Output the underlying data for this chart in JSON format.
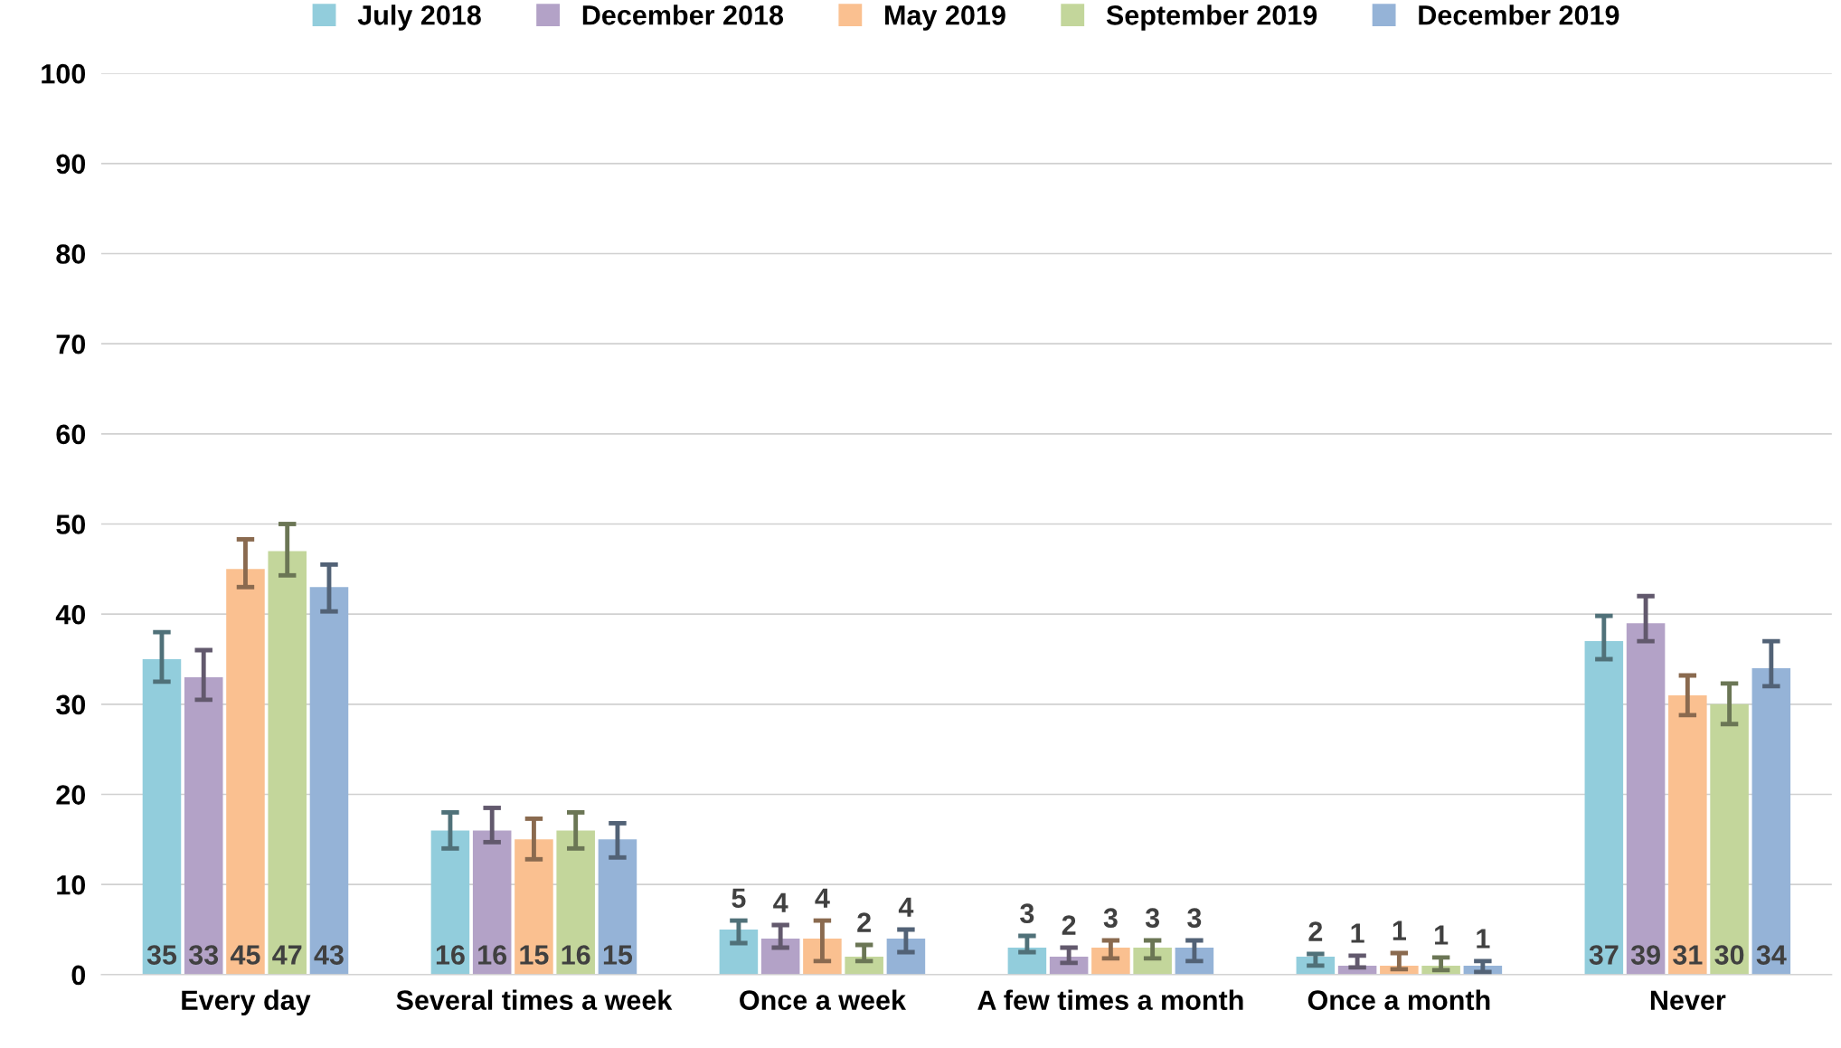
{
  "chart_data": {
    "type": "bar",
    "categories": [
      "Every day",
      "Several times a week",
      "Once a week",
      "A few times a month",
      "Once a month",
      "Never"
    ],
    "series": [
      {
        "name": "July 2018",
        "color": "#92cddc",
        "values": [
          35,
          16,
          5,
          3,
          2,
          37
        ],
        "errors": [
          [
            32.5,
            38
          ],
          [
            14,
            18
          ],
          [
            3.5,
            6
          ],
          [
            2.5,
            4.3
          ],
          [
            1,
            2.3
          ],
          [
            35,
            39.8
          ]
        ]
      },
      {
        "name": "December 2018",
        "color": "#b3a2c7",
        "values": [
          33,
          16,
          4,
          2,
          1,
          39
        ],
        "errors": [
          [
            30.5,
            36
          ],
          [
            14.7,
            18.5
          ],
          [
            3,
            5.5
          ],
          [
            1.3,
            3
          ],
          [
            0.8,
            2.1
          ],
          [
            37,
            42
          ]
        ]
      },
      {
        "name": "May 2019",
        "color": "#fac090",
        "values": [
          45,
          15,
          4,
          3,
          1,
          31
        ],
        "errors": [
          [
            43,
            48.3
          ],
          [
            12.8,
            17.3
          ],
          [
            1.5,
            6
          ],
          [
            1.8,
            3.8
          ],
          [
            0.6,
            2.4
          ],
          [
            28.8,
            33.2
          ]
        ]
      },
      {
        "name": "September 2019",
        "color": "#c3d69b",
        "values": [
          47,
          16,
          2,
          3,
          1,
          30
        ],
        "errors": [
          [
            44.3,
            50
          ],
          [
            14,
            18
          ],
          [
            1.5,
            3.3
          ],
          [
            1.8,
            3.8
          ],
          [
            0.5,
            1.9
          ],
          [
            27.8,
            32.3
          ]
        ]
      },
      {
        "name": "December 2019",
        "color": "#95b3d7",
        "values": [
          43,
          15,
          4,
          3,
          1,
          34
        ],
        "errors": [
          [
            40.3,
            45.5
          ],
          [
            13,
            16.8
          ],
          [
            2.5,
            5
          ],
          [
            1.5,
            3.8
          ],
          [
            0.3,
            1.5
          ],
          [
            32,
            37
          ]
        ]
      }
    ],
    "ylim": [
      0,
      100
    ],
    "yticks": [
      0,
      10,
      20,
      30,
      40,
      50,
      60,
      70,
      80,
      90,
      100
    ],
    "grid": "y",
    "legend": "top",
    "data_labels": true
  }
}
